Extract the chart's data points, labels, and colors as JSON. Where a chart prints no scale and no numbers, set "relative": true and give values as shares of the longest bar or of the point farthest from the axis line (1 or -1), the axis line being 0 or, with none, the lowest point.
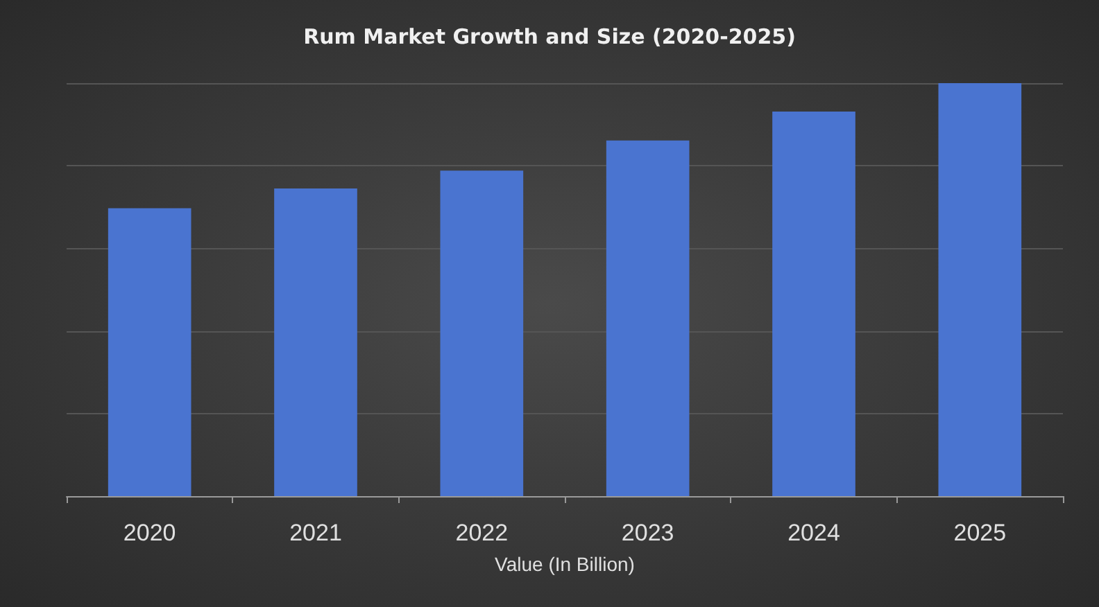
{
  "chart_data": {
    "type": "bar",
    "title": "Rum Market Growth and Size (2020-2025)",
    "xlabel": "Value (In Billion)",
    "categories": [
      "2020",
      "2021",
      "2022",
      "2023",
      "2024",
      "2025"
    ],
    "values": [
      0.697,
      0.745,
      0.788,
      0.861,
      0.931,
      1
    ],
    "color": "#4a74d0",
    "relative": true,
    "grid": "y"
  }
}
